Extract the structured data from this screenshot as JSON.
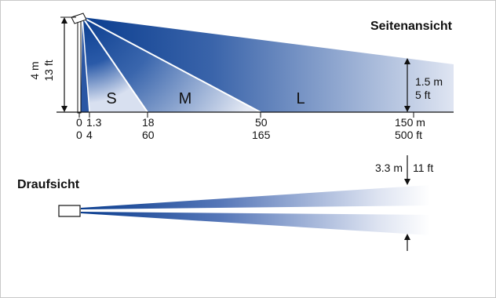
{
  "side_view": {
    "title": "Seitenansicht",
    "mount_height_m": "4 m",
    "mount_height_ft": "13 ft",
    "end_height_m": "1.5 m",
    "end_height_ft": "5 ft",
    "zones": [
      "S",
      "M",
      "L"
    ],
    "distances_m": [
      "0",
      "1.3",
      "18",
      "50",
      "150 m"
    ],
    "distances_ft": [
      "0",
      "4",
      "60",
      "165",
      "500 ft"
    ]
  },
  "top_view": {
    "title": "Draufsicht",
    "width_m": "3.3 m",
    "width_ft": "11 ft"
  },
  "colors": {
    "beam_dark": "#0a3d8f",
    "beam_light": "#e8ecf6",
    "line": "#111111"
  }
}
